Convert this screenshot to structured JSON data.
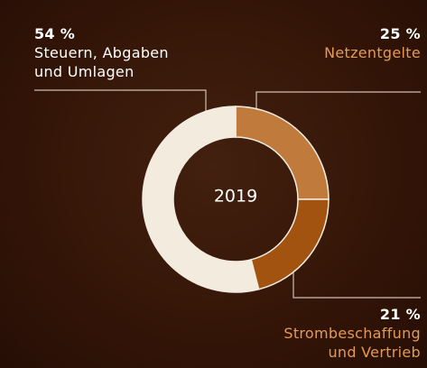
{
  "chart_data": {
    "type": "donut",
    "center_label": "2019",
    "categories": [
      "Netzentgelte",
      "Strombeschaffung\nund Vertrieb",
      "Steuern, Abgaben\nund Umlagen"
    ],
    "values": [
      25,
      21,
      54
    ],
    "value_labels": [
      "25 %",
      "21 %",
      "54 %"
    ],
    "colors": [
      "#bf7a3c",
      "#a2530f",
      "#f4ebdf"
    ]
  }
}
